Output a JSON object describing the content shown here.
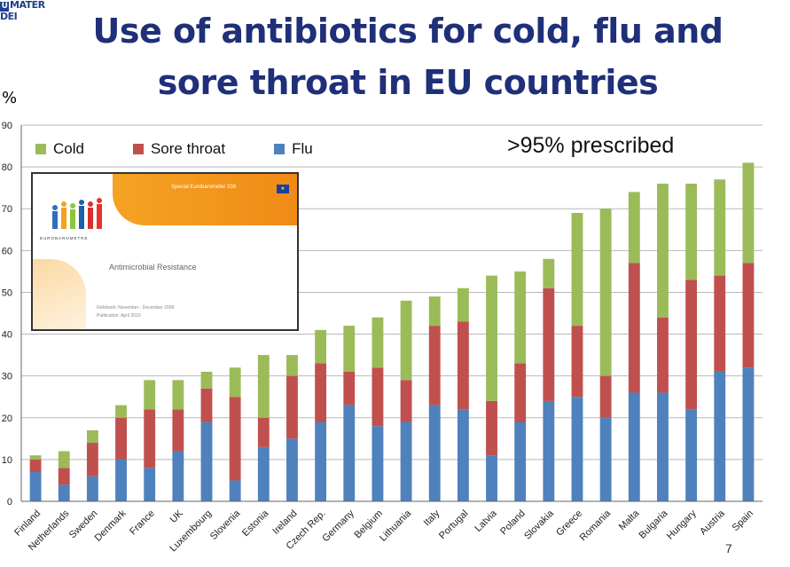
{
  "header": {
    "logo_text": "MATER DEI",
    "logo_mark": "U"
  },
  "slide": {
    "title_line1": "Use of antibiotics for cold, flu and",
    "title_line2": "sore throat in EU countries",
    "annotation": ">95% prescribed",
    "page_number": "7"
  },
  "report_inset": {
    "series_title": "Special Eurobarometer 338",
    "brand": "EUROBAROMETRE",
    "title": "Antimicrobial Resistance",
    "fieldwork": "Fieldwork: November - December 2009",
    "publication": "Publication: April 2010",
    "flag": "★"
  },
  "chart_data": {
    "type": "bar",
    "stacked": true,
    "title": "Use of antibiotics for cold, flu and sore throat in EU countries",
    "ylabel": "%",
    "ylim": [
      0,
      90
    ],
    "yticks": [
      0,
      10,
      20,
      30,
      40,
      50,
      60,
      70,
      80,
      90
    ],
    "ytick_labels": [
      "0",
      "10",
      "20",
      "30",
      "40",
      "50",
      "60",
      "70",
      "80",
      "90"
    ],
    "grid": true,
    "legend_position": "top-left",
    "categories": [
      "Finland",
      "Netherlands",
      "Sweden",
      "Denmark",
      "France",
      "UK",
      "Luxembourg",
      "Slovenia",
      "Estonia",
      "Ireland",
      "Czech Rep.",
      "Germany",
      "Belgium",
      "Lithuania",
      "Italy",
      "Portugal",
      "Latvia",
      "Poland",
      "Slovakia",
      "Greece",
      "Romania",
      "Malta",
      "Bulgaria",
      "Hungary",
      "Austria",
      "Spain"
    ],
    "series": [
      {
        "name": "Flu",
        "color": "#4f81bd",
        "values": [
          7,
          4,
          6,
          10,
          8,
          12,
          19,
          5,
          13,
          15,
          19,
          23,
          18,
          19,
          23,
          22,
          11,
          19,
          24,
          25,
          20,
          26,
          26,
          22,
          31,
          32
        ]
      },
      {
        "name": "Sore throat",
        "color": "#c0504d",
        "values": [
          3,
          4,
          8,
          10,
          14,
          10,
          8,
          20,
          7,
          15,
          14,
          8,
          14,
          10,
          19,
          21,
          13,
          14,
          27,
          17,
          10,
          31,
          18,
          31,
          23,
          25
        ]
      },
      {
        "name": "Cold",
        "color": "#9bbb59",
        "values": [
          1,
          4,
          3,
          3,
          7,
          7,
          4,
          7,
          15,
          5,
          8,
          11,
          12,
          19,
          7,
          8,
          30,
          22,
          7,
          27,
          40,
          17,
          32,
          23,
          23,
          24
        ]
      }
    ],
    "legend_order": [
      "Cold",
      "Sore throat",
      "Flu"
    ]
  }
}
